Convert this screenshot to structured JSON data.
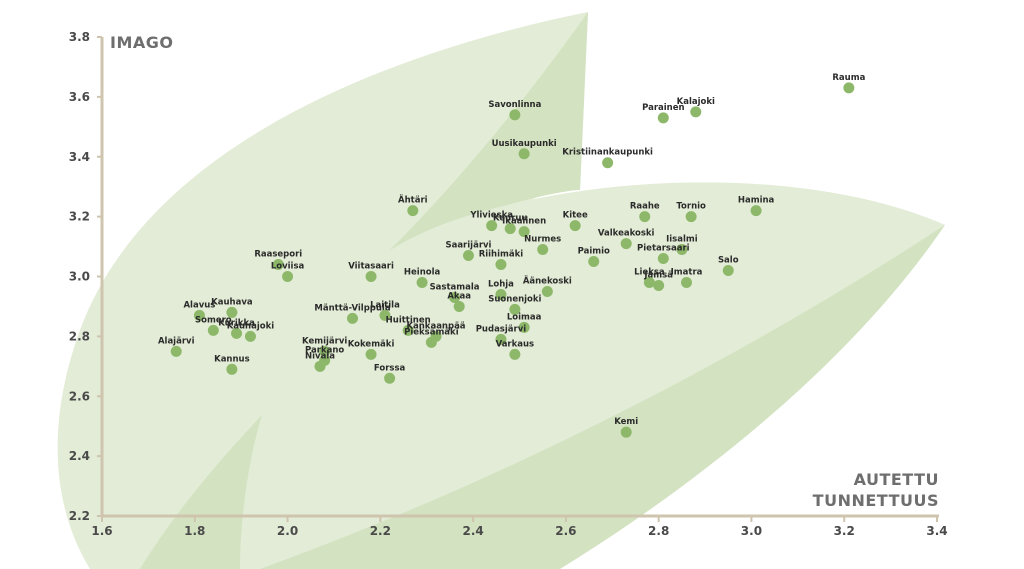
{
  "colors": {
    "leaf_light": "#e3ecd6",
    "leaf_mid": "#d3e2c0",
    "leaf_dark": "#c6dab0",
    "point": "#8db86a",
    "axis": "#cfc4ad",
    "text": "#2b2b2b"
  },
  "chart_data": {
    "type": "scatter",
    "title": "",
    "xlabel": [
      "AUTETTU",
      "TUNNETTUUS"
    ],
    "ylabel": "IMAGO",
    "xlim": [
      1.6,
      3.4
    ],
    "ylim": [
      2.2,
      3.8
    ],
    "x_ticks": [
      "1.6",
      "1.8",
      "2.0",
      "2.2",
      "2.4",
      "2.6",
      "2.8",
      "3.0",
      "3.2",
      "3.4"
    ],
    "y_ticks": [
      "2.2",
      "2.4",
      "2.6",
      "2.8",
      "3.0",
      "3.2",
      "3.4",
      "3.6",
      "3.8"
    ],
    "grid": false,
    "points": [
      {
        "label": "Rauma",
        "x": 3.21,
        "y": 3.63
      },
      {
        "label": "Kalajoki",
        "x": 2.88,
        "y": 3.55
      },
      {
        "label": "Parainen",
        "x": 2.81,
        "y": 3.53
      },
      {
        "label": "Savonlinna",
        "x": 2.49,
        "y": 3.54
      },
      {
        "label": "Uusikaupunki",
        "x": 2.51,
        "y": 3.41
      },
      {
        "label": "Kristiinankaupunki",
        "x": 2.69,
        "y": 3.38
      },
      {
        "label": "Ähtäri",
        "x": 2.27,
        "y": 3.22
      },
      {
        "label": "Hamina",
        "x": 3.01,
        "y": 3.22
      },
      {
        "label": "Raahe",
        "x": 2.77,
        "y": 3.2
      },
      {
        "label": "Tornio",
        "x": 2.87,
        "y": 3.2
      },
      {
        "label": "Ylivieska",
        "x": 2.44,
        "y": 3.17
      },
      {
        "label": "Keuruu",
        "x": 2.48,
        "y": 3.16
      },
      {
        "label": "Ikaalinen",
        "x": 2.51,
        "y": 3.15
      },
      {
        "label": "Kitee",
        "x": 2.62,
        "y": 3.17
      },
      {
        "label": "Valkeakoski",
        "x": 2.73,
        "y": 3.11
      },
      {
        "label": "Iisalmi",
        "x": 2.85,
        "y": 3.09
      },
      {
        "label": "Nurmes",
        "x": 2.55,
        "y": 3.09
      },
      {
        "label": "Saarijärvi",
        "x": 2.39,
        "y": 3.07
      },
      {
        "label": "Pietarsaari",
        "x": 2.81,
        "y": 3.06
      },
      {
        "label": "Riihimäki",
        "x": 2.46,
        "y": 3.04
      },
      {
        "label": "Paimio",
        "x": 2.66,
        "y": 3.05
      },
      {
        "label": "Salo",
        "x": 2.95,
        "y": 3.02
      },
      {
        "label": "Raasepori",
        "x": 1.98,
        "y": 3.04
      },
      {
        "label": "Loviisa",
        "x": 2.0,
        "y": 3.0
      },
      {
        "label": "Viitasaari",
        "x": 2.18,
        "y": 3.0
      },
      {
        "label": "Heinola",
        "x": 2.29,
        "y": 2.98
      },
      {
        "label": "Lieksa",
        "x": 2.78,
        "y": 2.98
      },
      {
        "label": "Imatra",
        "x": 2.86,
        "y": 2.98
      },
      {
        "label": "Jämsä",
        "x": 2.8,
        "y": 2.97
      },
      {
        "label": "Äänekoski",
        "x": 2.56,
        "y": 2.95
      },
      {
        "label": "Sastamala",
        "x": 2.36,
        "y": 2.93
      },
      {
        "label": "Lohja",
        "x": 2.46,
        "y": 2.94
      },
      {
        "label": "Akaa",
        "x": 2.37,
        "y": 2.9
      },
      {
        "label": "Suonenjoki",
        "x": 2.49,
        "y": 2.89
      },
      {
        "label": "Alavus",
        "x": 1.81,
        "y": 2.87
      },
      {
        "label": "Kauhava",
        "x": 1.88,
        "y": 2.88
      },
      {
        "label": "Mänttä-Vilppula",
        "x": 2.14,
        "y": 2.86
      },
      {
        "label": "Laitila",
        "x": 2.21,
        "y": 2.87
      },
      {
        "label": "Loimaa",
        "x": 2.51,
        "y": 2.83
      },
      {
        "label": "Somero",
        "x": 1.84,
        "y": 2.82
      },
      {
        "label": "Kurikka",
        "x": 1.89,
        "y": 2.81
      },
      {
        "label": "Kauhajoki",
        "x": 1.92,
        "y": 2.8
      },
      {
        "label": "Huittinen",
        "x": 2.26,
        "y": 2.82
      },
      {
        "label": "Kankaanpää",
        "x": 2.32,
        "y": 2.8
      },
      {
        "label": "Pudasjärvi",
        "x": 2.46,
        "y": 2.79
      },
      {
        "label": "Kemijärvi",
        "x": 2.08,
        "y": 2.75
      },
      {
        "label": "Kokemäki",
        "x": 2.18,
        "y": 2.74
      },
      {
        "label": "Pieksämäki",
        "x": 2.31,
        "y": 2.78
      },
      {
        "label": "Varkaus",
        "x": 2.49,
        "y": 2.74
      },
      {
        "label": "Alajärvi",
        "x": 1.76,
        "y": 2.75
      },
      {
        "label": "Parkano",
        "x": 2.08,
        "y": 2.72
      },
      {
        "label": "Nivala",
        "x": 2.07,
        "y": 2.7
      },
      {
        "label": "Kannus",
        "x": 1.88,
        "y": 2.69
      },
      {
        "label": "Forssa",
        "x": 2.22,
        "y": 2.66
      },
      {
        "label": "Kemi",
        "x": 2.73,
        "y": 2.48
      }
    ]
  }
}
